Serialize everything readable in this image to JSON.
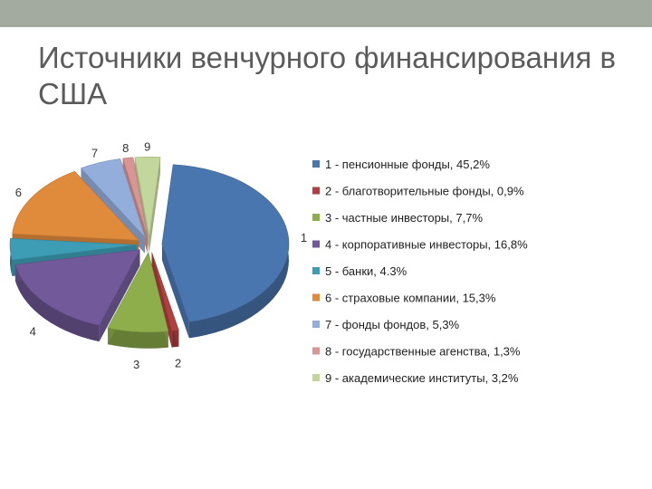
{
  "slide": {
    "title": "Источники венчурного финансирования в США"
  },
  "chart_data": {
    "type": "pie",
    "style": "3d-exploded",
    "legend_position": "right",
    "slices": [
      {
        "label": "1",
        "legend": "1 - пенсионные фонды, 45,2%",
        "value": 45.2,
        "color": "#4a76b0"
      },
      {
        "label": "2",
        "legend": "2 - благотворительные фонды, 0,9%",
        "value": 0.9,
        "color": "#b04040"
      },
      {
        "label": "3",
        "legend": "3 - частные инвесторы, 7,7%",
        "value": 7.7,
        "color": "#8dae4a"
      },
      {
        "label": "4",
        "legend": "4 - корпоративные инвесторы, 16,8%",
        "value": 16.8,
        "color": "#725a9a"
      },
      {
        "label": "5",
        "legend": "5 - банки, 4.3%",
        "value": 4.3,
        "color": "#3d9db5"
      },
      {
        "label": "6",
        "legend": "6 - страховые компании, 15,3%",
        "value": 15.3,
        "color": "#e08a3c"
      },
      {
        "label": "7",
        "legend": "7 - фонды фондов, 5,3%",
        "value": 5.3,
        "color": "#93aedb"
      },
      {
        "label": "8",
        "legend": "8 - государственные агенства, 1,3%",
        "value": 1.3,
        "color": "#d99594"
      },
      {
        "label": "9",
        "legend": "9 - академические институты, 3,2%",
        "value": 3.2,
        "color": "#c3d69b"
      }
    ]
  }
}
